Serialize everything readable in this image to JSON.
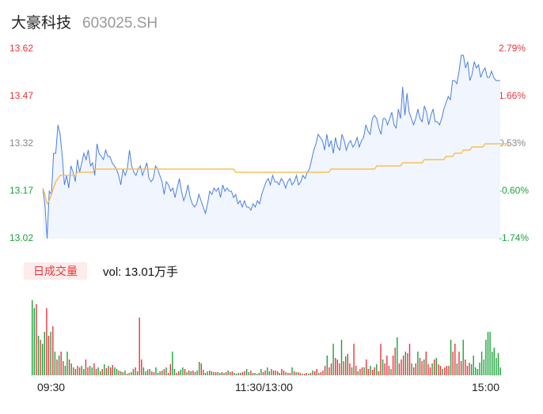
{
  "header": {
    "name": "大豪科技",
    "code": "603025.SH"
  },
  "volume": {
    "tab_label": "日成交量",
    "label": "vol: 13.01万手"
  },
  "colors": {
    "price": "#4a7fe0",
    "avg": "#f5c15b",
    "up": "#e8353c",
    "down": "#1aa33a",
    "flat": "#888888"
  },
  "chart_data": {
    "type": "line",
    "y_left_ticks": [
      "13.62",
      "13.47",
      "13.32",
      "13.17",
      "13.02"
    ],
    "y_right_ticks": [
      "2.79%",
      "1.66%",
      "0.53%",
      "-0.60%",
      "-1.74%"
    ],
    "x_ticks": [
      "09:30",
      "11:30/13:00",
      "15:00"
    ],
    "ylim": [
      13.02,
      13.62
    ],
    "price": [
      13.18,
      13.13,
      13.02,
      13.17,
      13.16,
      13.29,
      13.29,
      13.38,
      13.35,
      13.28,
      13.19,
      13.22,
      13.18,
      13.25,
      13.23,
      13.2,
      13.27,
      13.23,
      13.26,
      13.29,
      13.27,
      13.3,
      13.25,
      13.26,
      13.22,
      13.32,
      13.29,
      13.28,
      13.27,
      13.3,
      13.28,
      13.28,
      13.26,
      13.25,
      13.24,
      13.22,
      13.19,
      13.24,
      13.22,
      13.24,
      13.3,
      13.25,
      13.23,
      13.22,
      13.24,
      13.25,
      13.22,
      13.24,
      13.26,
      13.21,
      13.2,
      13.21,
      13.25,
      13.24,
      13.22,
      13.2,
      13.16,
      13.2,
      13.19,
      13.17,
      13.18,
      13.15,
      13.18,
      13.21,
      13.17,
      13.14,
      13.16,
      13.19,
      13.15,
      13.13,
      13.12,
      13.13,
      13.16,
      13.14,
      13.12,
      13.1,
      13.13,
      13.17,
      13.16,
      13.18,
      13.17,
      13.18,
      13.15,
      13.19,
      13.17,
      13.18,
      13.17,
      13.17,
      13.15,
      13.16,
      13.13,
      13.14,
      13.12,
      13.14,
      13.12,
      13.12,
      13.11,
      13.13,
      13.12,
      13.14,
      13.13,
      13.16,
      13.18,
      13.2,
      13.21,
      13.19,
      13.22,
      13.2,
      13.2,
      13.19,
      13.21,
      13.2,
      13.18,
      13.2,
      13.21,
      13.19,
      13.2,
      13.22,
      13.19,
      13.2,
      13.22,
      13.21,
      13.23,
      13.24,
      13.27,
      13.3,
      13.32,
      13.35,
      13.34,
      13.33,
      13.3,
      13.35,
      13.31,
      13.33,
      13.29,
      13.34,
      13.31,
      13.3,
      13.35,
      13.33,
      13.3,
      13.32,
      13.33,
      13.31,
      13.32,
      13.34,
      13.31,
      13.33,
      13.34,
      13.38,
      13.36,
      13.35,
      13.4,
      13.41,
      13.4,
      13.37,
      13.35,
      13.4,
      13.4,
      13.38,
      13.4,
      13.42,
      13.38,
      13.37,
      13.43,
      13.4,
      13.5,
      13.41,
      13.48,
      13.42,
      13.4,
      13.38,
      13.4,
      13.43,
      13.4,
      13.39,
      13.44,
      13.42,
      13.38,
      13.41,
      13.43,
      13.39,
      13.39,
      13.38,
      13.4,
      13.43,
      13.45,
      13.47,
      13.46,
      13.52,
      13.52,
      13.51,
      13.55,
      13.6,
      13.6,
      13.56,
      13.58,
      13.52,
      13.54,
      13.58,
      13.56,
      13.57,
      13.53,
      13.55,
      13.56,
      13.53,
      13.53,
      13.55,
      13.53,
      13.52,
      13.52,
      13.52
    ],
    "avg": [
      13.18,
      13.16,
      13.13,
      13.14,
      13.16,
      13.18,
      13.2,
      13.21,
      13.22,
      13.22,
      13.22,
      13.22,
      13.22,
      13.22,
      13.22,
      13.22,
      13.23,
      13.23,
      13.23,
      13.23,
      13.23,
      13.23,
      13.23,
      13.23,
      13.24,
      13.24,
      13.24,
      13.24,
      13.24,
      13.24,
      13.24,
      13.24,
      13.24,
      13.24,
      13.24,
      13.24,
      13.24,
      13.24,
      13.24,
      13.24,
      13.24,
      13.24,
      13.24,
      13.24,
      13.24,
      13.24,
      13.24,
      13.24,
      13.24,
      13.24,
      13.24,
      13.24,
      13.24,
      13.24,
      13.24,
      13.24,
      13.24,
      13.24,
      13.24,
      13.24,
      13.24,
      13.24,
      13.24,
      13.24,
      13.24,
      13.24,
      13.24,
      13.24,
      13.24,
      13.24,
      13.24,
      13.24,
      13.24,
      13.24,
      13.24,
      13.24,
      13.24,
      13.24,
      13.24,
      13.24,
      13.24,
      13.24,
      13.24,
      13.24,
      13.24,
      13.24,
      13.24,
      13.24,
      13.24,
      13.23,
      13.23,
      13.23,
      13.23,
      13.23,
      13.23,
      13.23,
      13.23,
      13.23,
      13.23,
      13.23,
      13.23,
      13.23,
      13.23,
      13.23,
      13.23,
      13.23,
      13.23,
      13.23,
      13.23,
      13.23,
      13.23,
      13.23,
      13.23,
      13.23,
      13.23,
      13.23,
      13.23,
      13.23,
      13.23,
      13.23,
      13.23,
      13.23,
      13.23,
      13.23,
      13.23,
      13.23,
      13.23,
      13.23,
      13.23,
      13.23,
      13.23,
      13.23,
      13.23,
      13.24,
      13.24,
      13.24,
      13.24,
      13.24,
      13.24,
      13.24,
      13.24,
      13.24,
      13.24,
      13.24,
      13.24,
      13.24,
      13.24,
      13.24,
      13.24,
      13.24,
      13.24,
      13.24,
      13.24,
      13.24,
      13.25,
      13.25,
      13.25,
      13.25,
      13.25,
      13.25,
      13.25,
      13.25,
      13.25,
      13.25,
      13.25,
      13.25,
      13.26,
      13.26,
      13.26,
      13.26,
      13.26,
      13.26,
      13.26,
      13.26,
      13.26,
      13.26,
      13.27,
      13.27,
      13.27,
      13.27,
      13.27,
      13.27,
      13.27,
      13.27,
      13.27,
      13.27,
      13.28,
      13.28,
      13.28,
      13.28,
      13.29,
      13.29,
      13.29,
      13.29,
      13.3,
      13.3,
      13.3,
      13.3,
      13.31,
      13.31,
      13.31,
      13.31,
      13.31,
      13.31,
      13.32,
      13.32,
      13.32,
      13.32,
      13.32,
      13.32,
      13.32,
      13.32,
      13.32,
      13.32,
      13.32,
      13.32
    ],
    "volume": [
      95,
      85,
      90,
      50,
      45,
      40,
      55,
      85,
      50,
      55,
      62,
      30,
      20,
      25,
      30,
      18,
      12,
      30,
      20,
      15,
      10,
      8,
      12,
      10,
      12,
      8,
      20,
      10,
      12,
      10,
      15,
      8,
      10,
      5,
      8,
      14,
      9,
      12,
      10,
      13,
      10,
      8,
      6,
      5,
      4,
      6,
      2,
      3,
      4,
      8,
      10,
      5,
      73,
      20,
      10,
      5,
      7,
      8,
      5,
      4,
      10,
      3,
      5,
      6,
      8,
      10,
      3,
      14,
      30,
      8,
      3,
      5,
      7,
      10,
      8,
      4,
      6,
      5,
      6,
      4,
      6,
      17,
      15,
      7,
      3,
      5,
      6,
      5,
      4,
      4,
      4,
      3,
      4,
      3,
      4,
      6,
      4,
      5,
      3,
      2,
      3,
      3,
      4,
      5,
      8,
      4,
      6,
      3,
      3,
      2,
      3,
      8,
      4,
      6,
      10,
      5,
      8,
      6,
      6,
      5,
      3,
      8,
      6,
      4,
      3,
      3,
      10,
      5,
      4,
      4,
      3,
      2,
      2,
      3,
      2,
      3,
      6,
      5,
      8,
      3,
      4,
      6,
      12,
      25,
      10,
      15,
      40,
      22,
      20,
      15,
      45,
      18,
      24,
      27,
      15,
      10,
      40,
      12,
      5,
      8,
      10,
      10,
      20,
      8,
      12,
      7,
      10,
      14,
      5,
      40,
      20,
      15,
      25,
      12,
      8,
      25,
      35,
      48,
      15,
      20,
      25,
      30,
      28,
      40,
      15,
      10,
      15,
      30,
      22,
      18,
      20,
      30,
      14,
      10,
      15,
      20,
      22,
      14,
      12,
      8,
      10,
      12,
      12,
      45,
      30,
      40,
      15,
      30,
      18,
      45,
      20,
      12,
      16,
      14,
      25,
      10,
      8,
      16,
      30,
      20,
      45,
      55,
      55,
      30,
      35,
      22,
      28,
      10
    ],
    "volume_colors": [
      "d",
      "d",
      "u",
      "d",
      "u",
      "d",
      "d",
      "u",
      "u",
      "d",
      "u",
      "d",
      "u",
      "d",
      "u",
      "u",
      "d",
      "d",
      "u",
      "d",
      "u",
      "d",
      "u",
      "u",
      "d",
      "d",
      "u",
      "u",
      "d",
      "d",
      "u",
      "u",
      "d",
      "d",
      "u",
      "d",
      "u",
      "d",
      "u",
      "u",
      "d",
      "d",
      "u",
      "d",
      "u",
      "d",
      "u",
      "u",
      "d",
      "d",
      "u",
      "d",
      "u",
      "u",
      "d",
      "d",
      "u",
      "d",
      "u",
      "u",
      "d",
      "d",
      "u",
      "d",
      "u",
      "d",
      "u",
      "u",
      "d",
      "d",
      "u",
      "u",
      "d",
      "d",
      "u",
      "d",
      "u",
      "d",
      "u",
      "u",
      "d",
      "d",
      "u",
      "u",
      "d",
      "d",
      "u",
      "d",
      "u",
      "u",
      "d",
      "d",
      "u",
      "d",
      "u",
      "d",
      "u",
      "u",
      "d",
      "d",
      "u",
      "d",
      "u",
      "u",
      "d",
      "d",
      "u",
      "u",
      "d",
      "d",
      "u",
      "d",
      "u",
      "u",
      "d",
      "d",
      "u",
      "d",
      "u",
      "u",
      "d",
      "u",
      "u",
      "d",
      "u",
      "u",
      "d",
      "u",
      "d",
      "u",
      "u",
      "d",
      "u",
      "u",
      "d",
      "u",
      "d",
      "u",
      "u",
      "d",
      "u",
      "u",
      "u",
      "d",
      "u",
      "u",
      "d",
      "u",
      "u",
      "u",
      "d",
      "u",
      "d",
      "u",
      "u",
      "d",
      "u",
      "u",
      "d",
      "u",
      "u",
      "d",
      "u",
      "u",
      "d",
      "u",
      "u",
      "d",
      "u",
      "u",
      "d",
      "u",
      "u",
      "u",
      "d",
      "u",
      "u",
      "d",
      "u",
      "u",
      "u",
      "d",
      "u",
      "u",
      "d",
      "u",
      "u",
      "d",
      "u",
      "u",
      "d",
      "u",
      "u",
      "u",
      "d",
      "u",
      "d",
      "u",
      "u",
      "d",
      "u",
      "u",
      "u",
      "d",
      "u",
      "u",
      "d",
      "u",
      "u",
      "d",
      "u",
      "u",
      "u",
      "d",
      "d"
    ]
  }
}
